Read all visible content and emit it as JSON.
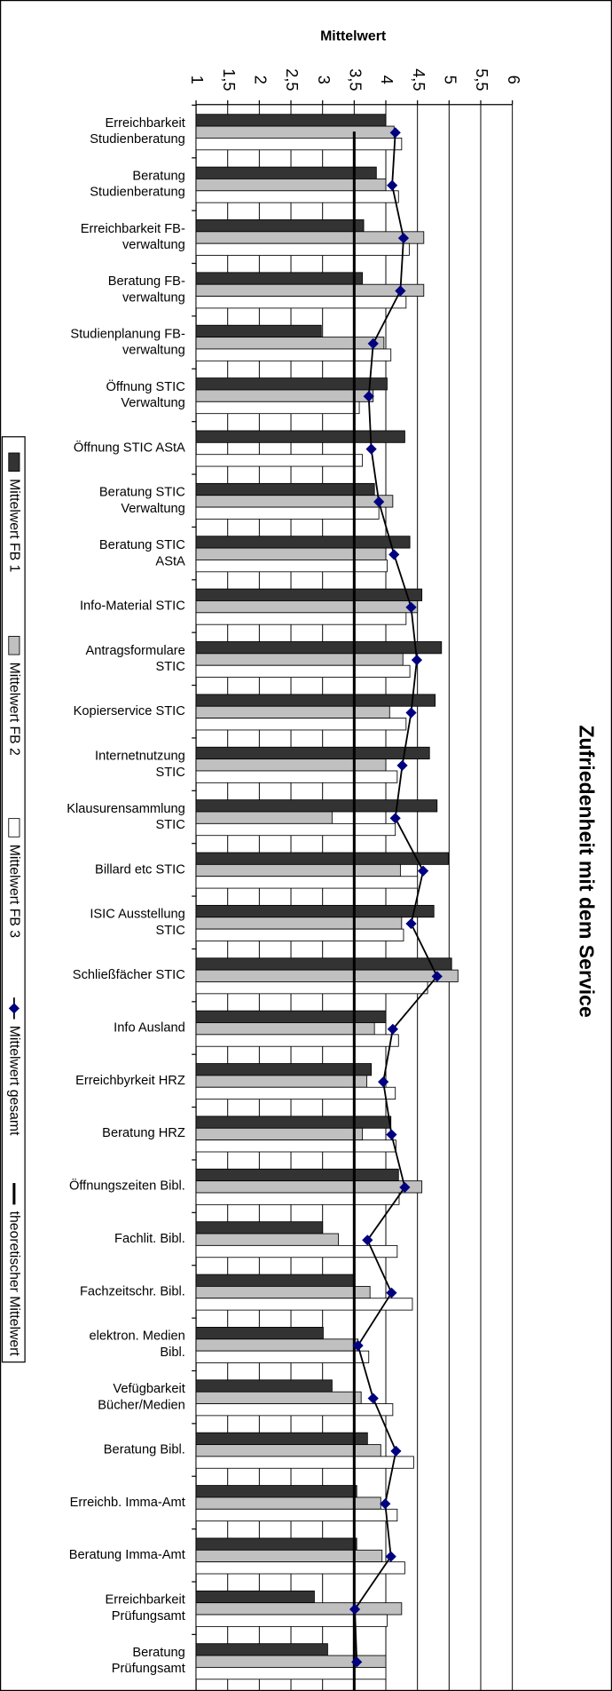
{
  "chart_data": {
    "type": "bar",
    "orientation": "horizontal",
    "title": "Zufriedenheit mit dem Service",
    "x_label": "Mittelwert",
    "xlim": [
      1,
      6
    ],
    "xticks": [
      1,
      {
        "value": 1.5,
        "label": "1,5"
      },
      2,
      {
        "value": 2.5,
        "label": "2,5"
      },
      3,
      {
        "value": 3.5,
        "label": "3,5"
      },
      4,
      {
        "value": 4.5,
        "label": "4,5"
      },
      5,
      {
        "value": 5.5,
        "label": "5,5"
      },
      6
    ],
    "grid": true,
    "legend": "left",
    "categories": [
      "Erreichbarkeit\nStudienberatung",
      "Beratung\nStudienberatung",
      "Erreichbarkeit FB-\nverwaltung",
      "Beratung FB-\nverwaltung",
      "Studienplanung FB-\nverwaltung",
      "Öffnung STIC\nVerwaltung",
      "Öffnung STIC AStA",
      "Beratung STIC\nVerwaltung",
      "Beratung STIC\nAStA",
      "Info-Material STIC",
      "Antragsformulare\nSTIC",
      "Kopierservice STIC",
      "Internetnutzung\nSTIC",
      "Klausurensammlung\nSTIC",
      "Billard etc STIC",
      "ISIC Ausstellung\nSTIC",
      "Schließfächer STIC",
      "Info Ausland",
      "Erreichbyrkeit HRZ",
      "Beratung HRZ",
      "Öffnungszeiten Bibl.",
      "Fachlit. Bibl.",
      "Fachzeitschr. Bibl.",
      "elektron. Medien\nBibl.",
      "Vefügbarkeit\nBücher/Medien",
      "Beratung Bibl.",
      "Erreichb. Imma-Amt",
      "Beratung Imma-Amt",
      "Erreichbarkeit\nPrüfungsamt",
      "Beratung\nPrüfungsamt"
    ],
    "series": [
      {
        "name": "Mittelwert FB 1",
        "color": "#333333",
        "values": [
          4.0,
          3.85,
          3.65,
          3.63,
          2.98,
          4.02,
          4.3,
          3.82,
          4.38,
          4.57,
          4.88,
          4.78,
          4.69,
          4.81,
          4.99,
          4.76,
          5.04,
          4.0,
          3.77,
          4.08,
          4.2,
          3.0,
          3.49,
          3.01,
          3.15,
          3.71,
          3.54,
          3.54,
          2.87,
          3.08
        ]
      },
      {
        "name": "Mittelwert FB 2",
        "color": "#c0c0c0",
        "values": [
          4.13,
          4.0,
          4.6,
          4.6,
          3.97,
          3.8,
          null,
          4.11,
          4.0,
          4.5,
          4.27,
          4.06,
          4.0,
          3.15,
          4.23,
          4.25,
          5.14,
          3.82,
          3.7,
          3.63,
          4.57,
          3.25,
          3.75,
          3.56,
          3.61,
          3.92,
          3.92,
          3.94,
          4.25,
          4.0
        ]
      },
      {
        "name": "Mittelwert FB 3",
        "color": "#ffffff",
        "values": [
          4.25,
          4.2,
          4.37,
          4.32,
          4.08,
          3.58,
          3.63,
          3.89,
          4.02,
          4.32,
          4.38,
          4.32,
          4.18,
          4.15,
          4.5,
          4.28,
          4.66,
          4.2,
          4.15,
          4.16,
          4.21,
          4.18,
          4.42,
          3.73,
          4.11,
          4.44,
          4.18,
          4.3,
          4.02,
          4.0
        ]
      },
      {
        "name": "Mittelwert gesamt",
        "color": "#000080",
        "type": "line",
        "values": [
          4.15,
          4.1,
          4.28,
          4.23,
          3.8,
          3.73,
          3.77,
          3.89,
          4.13,
          4.4,
          4.49,
          4.4,
          4.26,
          4.15,
          4.59,
          4.4,
          4.81,
          4.11,
          3.96,
          4.09,
          4.3,
          3.71,
          4.09,
          3.56,
          3.8,
          4.16,
          3.99,
          4.08,
          3.51,
          3.54
        ]
      }
    ],
    "reference_line": {
      "name": "theoretischer Mittelwert",
      "value": 3.5,
      "color": "#000000"
    }
  }
}
